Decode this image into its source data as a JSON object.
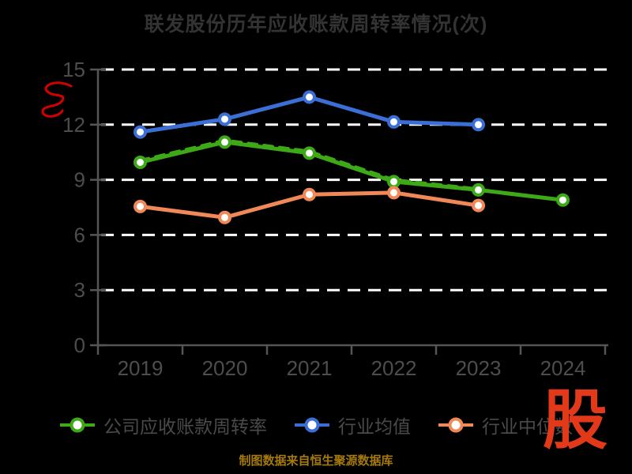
{
  "title": "联发股份历年应收账款周转率情况(次)",
  "colors": {
    "background": "#000000",
    "title_text": "#333333",
    "axis_line": "#555555",
    "tick_label": "#4d4d4d",
    "gridline": "#ffffff",
    "legend_text": "#4a4a4a",
    "footer_text": "#a6790b",
    "watermark_red": "#e2391b",
    "scribble_red": "#d40000",
    "series_company_green": "#3ea917",
    "series_mean_blue": "#3b6fd6",
    "series_median_orange": "#f08858"
  },
  "watermarks": {
    "stock_glyph": "股",
    "scribble_icon": "red-handwritten-scribble"
  },
  "footer": {
    "text": "制图数据来自恒生聚源数据库"
  },
  "legend": {
    "items": [
      {
        "label": "公司应收账款周转率",
        "color": "#3ea917"
      },
      {
        "label": "行业均值",
        "color": "#3b6fd6"
      },
      {
        "label": "行业中位数",
        "color": "#f08858"
      }
    ]
  },
  "chart_data": {
    "type": "line",
    "title": "联发股份历年应收账款周转率情况(次)",
    "xlabel": "",
    "ylabel": "",
    "categories": [
      "2019",
      "2020",
      "2021",
      "2022",
      "2023",
      "2024"
    ],
    "ylim": [
      0,
      15
    ],
    "yticks": [
      0,
      3,
      6,
      9,
      12,
      15
    ],
    "grid": "horizontal-white-dashed",
    "legend_position": "bottom",
    "series": [
      {
        "name": "公司应收账款周转率",
        "color": "#3ea917",
        "style": "solid",
        "markers": true,
        "values": [
          9.95,
          11.05,
          10.45,
          8.9,
          8.45,
          7.9
        ]
      },
      {
        "name": "公司应收账款周转率(重叠虚线描边)",
        "color": "#3ea917",
        "style": "dashed",
        "markers": false,
        "values": [
          10.05,
          11.15,
          10.55,
          9.0,
          8.5,
          null
        ]
      },
      {
        "name": "行业均值",
        "color": "#3b6fd6",
        "style": "solid",
        "markers": true,
        "values": [
          11.6,
          12.3,
          13.5,
          12.15,
          12.0,
          null
        ]
      },
      {
        "name": "行业中位数",
        "color": "#f08858",
        "style": "solid",
        "markers": true,
        "values": [
          7.55,
          6.95,
          8.2,
          8.3,
          7.6,
          null
        ]
      }
    ]
  }
}
